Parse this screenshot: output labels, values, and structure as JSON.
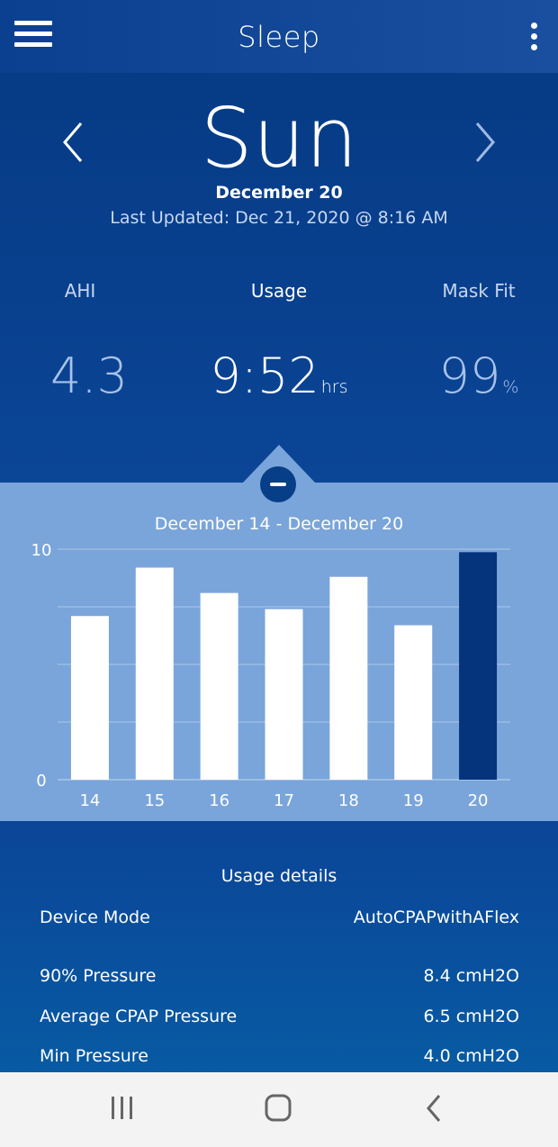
{
  "header": {
    "title": "Sleep"
  },
  "day": {
    "name": "Sun",
    "date": "December 20",
    "last_updated": "Last Updated: Dec 21, 2020 @ 8:16 AM"
  },
  "metrics": {
    "ahi": {
      "label": "AHI",
      "value": "4.3"
    },
    "usage": {
      "label": "Usage",
      "value": "9:52",
      "unit": "hrs"
    },
    "mask_fit": {
      "label": "Mask Fit",
      "value": "99",
      "unit": "%"
    }
  },
  "chart_data": {
    "type": "bar",
    "title": "December 14 - December 20",
    "categories": [
      "14",
      "15",
      "16",
      "17",
      "18",
      "19",
      "20"
    ],
    "values": [
      7.1,
      9.2,
      8.1,
      7.4,
      8.8,
      6.7,
      9.87
    ],
    "ylim": [
      0,
      10
    ],
    "y_ticks": [
      "0",
      "10"
    ],
    "highlight_index": 6,
    "colors": {
      "bar": "#ffffff",
      "highlight": "#05337c",
      "grid": "#aac6ea"
    },
    "grid": true
  },
  "details": {
    "title": "Usage details",
    "rows": [
      {
        "label": "Device Mode",
        "value": "AutoCPAPwithAFlex"
      },
      {
        "label": "90% Pressure",
        "value": "8.4 cmH2O"
      },
      {
        "label": "Average CPAP Pressure",
        "value": "6.5 cmH2O"
      },
      {
        "label": "Min Pressure",
        "value": "4.0 cmH2O"
      }
    ]
  },
  "icons": {
    "menu": "hamburger-icon",
    "more": "kebab-icon",
    "prev": "chevron-left-icon",
    "next": "chevron-right-icon",
    "collapse": "minus-icon",
    "recents": "recents-icon",
    "home": "home-icon",
    "back": "back-icon"
  }
}
